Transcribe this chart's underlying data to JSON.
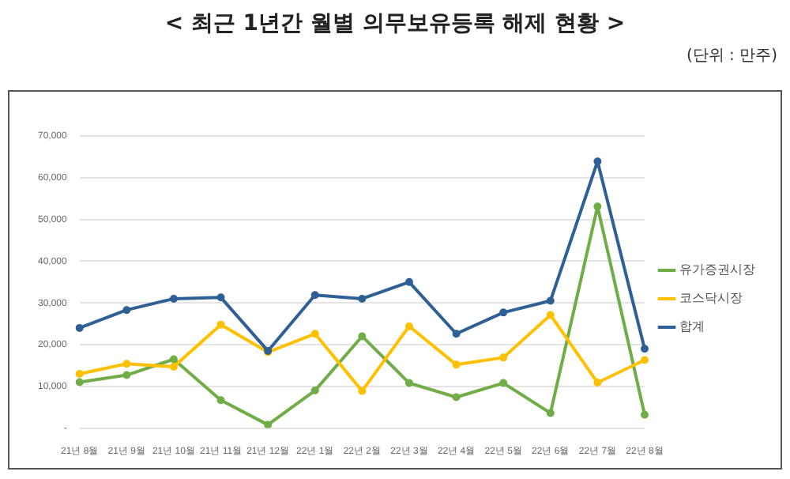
{
  "chart_data": {
    "type": "line",
    "title": "< 최근 1년간 월별 의무보유등록 해제 현황 >",
    "subtitle": "(단위 : 만주)",
    "categories": [
      "21년 8월",
      "21년 9월",
      "21년 10월",
      "21년 11월",
      "21년 12월",
      "22년 1월",
      "22년 2월",
      "22년 3월",
      "22년 4월",
      "22년 5월",
      "22년 6월",
      "22년 7월",
      "22년 8월"
    ],
    "series": [
      {
        "name": "유가증권시장",
        "color": "#70ad47",
        "values": [
          11000,
          12700,
          16500,
          6700,
          800,
          9000,
          22000,
          10800,
          7400,
          10800,
          3600,
          53100,
          3200
        ]
      },
      {
        "name": "코스닥시장",
        "color": "#ffc000",
        "values": [
          13000,
          15400,
          14700,
          24800,
          18200,
          22600,
          8900,
          24400,
          15200,
          16900,
          27100,
          10900,
          16300
        ]
      },
      {
        "name": "합계",
        "color": "#2e5f95",
        "values": [
          24000,
          28300,
          31000,
          31300,
          18500,
          31900,
          31000,
          35000,
          22600,
          27700,
          30500,
          63900,
          19000
        ]
      }
    ],
    "ylim": [
      0,
      70000
    ],
    "yticks": [
      {
        "value": 0,
        "label": "-"
      },
      {
        "value": 10000,
        "label": "10,000"
      },
      {
        "value": 20000,
        "label": "20,000"
      },
      {
        "value": 30000,
        "label": "30,000"
      },
      {
        "value": 40000,
        "label": "40,000"
      },
      {
        "value": 50000,
        "label": "50,000"
      },
      {
        "value": 60000,
        "label": "60,000"
      },
      {
        "value": 70000,
        "label": "70,000"
      }
    ],
    "grid": "y",
    "legend": "right",
    "marker": "circle",
    "line_style": "solid"
  }
}
